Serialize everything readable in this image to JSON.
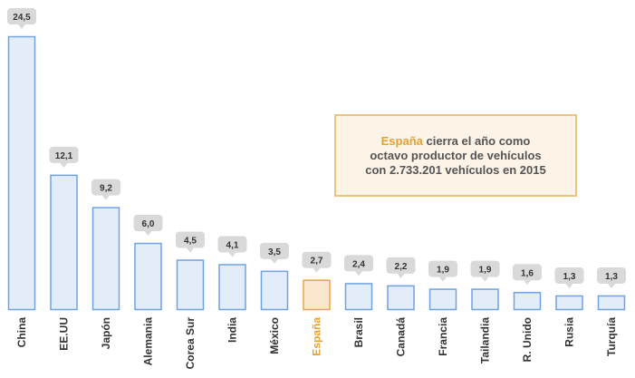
{
  "chart_data": {
    "type": "bar",
    "categories": [
      "China",
      "EE.UU",
      "Japón",
      "Alemania",
      "Corea Sur",
      "India",
      "México",
      "España",
      "Brasil",
      "Canadá",
      "Francia",
      "Tailandia",
      "R. Unido",
      "Rusia",
      "Turquía"
    ],
    "values": [
      24.5,
      12.1,
      9.2,
      6.0,
      4.5,
      4.1,
      3.5,
      2.7,
      2.4,
      2.2,
      1.9,
      1.9,
      1.6,
      1.3,
      1.3
    ],
    "data_labels": [
      "24,5",
      "12,1",
      "9,2",
      "6,0",
      "4,5",
      "4,1",
      "3,5",
      "2,7",
      "2,4",
      "2,2",
      "1,9",
      "1,9",
      "1,6",
      "1,3",
      "1,3"
    ],
    "highlight_category": "España",
    "ylim": [
      0,
      24.5
    ],
    "grid": false,
    "colors": {
      "bar_fill": "#e3ecf9",
      "bar_stroke": "#6fa3e0",
      "highlight_fill": "#fbe8cc",
      "highlight_stroke": "#eba54a",
      "label_bg": "#d9d9d9",
      "highlight_text": "#e8a030"
    },
    "annotation": {
      "highlight": "España",
      "text": " cierra el año como octavo productor de vehículos con 2.733.201 vehículos en 2015"
    }
  }
}
